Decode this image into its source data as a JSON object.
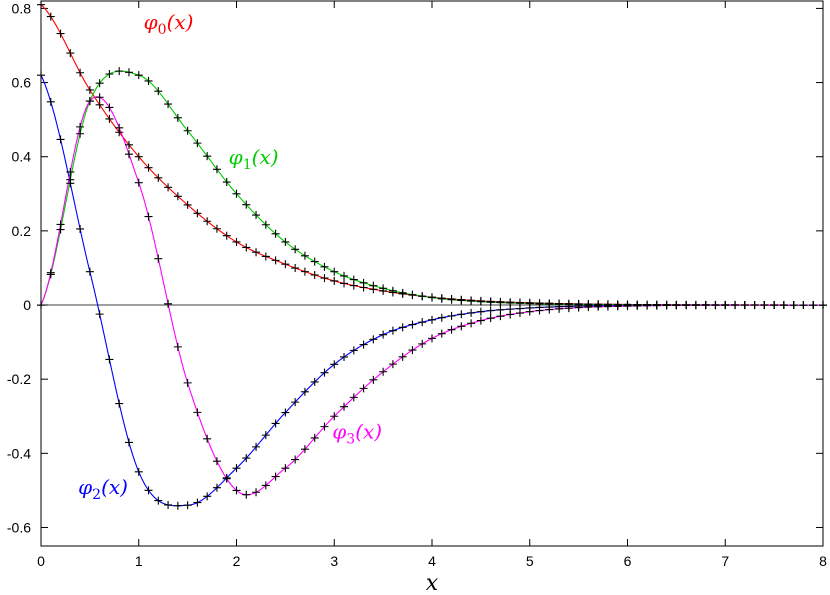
{
  "chart_data": {
    "type": "line",
    "title": "",
    "xlabel": "x",
    "ylabel": "",
    "xlim": [
      0,
      8
    ],
    "ylim": [
      -0.65,
      0.82
    ],
    "x_ticks": [
      0,
      1,
      2,
      3,
      4,
      5,
      6,
      7,
      8
    ],
    "x_tick_labels": [
      "0",
      "1",
      "2",
      "3",
      "4",
      "5",
      "6",
      "7",
      "8"
    ],
    "y_ticks": [
      0.8,
      0.6,
      0.4,
      0.2,
      0,
      -0.2,
      -0.4,
      -0.6
    ],
    "y_tick_labels": [
      "0.8",
      "0.6",
      "0.4",
      "0.2",
      "0",
      "-0.2",
      "-0.4",
      "-0.6"
    ],
    "grid": false,
    "zero_line": true,
    "x": [
      0,
      0.5,
      1.0,
      1.5,
      2.0,
      2.5,
      3.0,
      3.5,
      4.0,
      4.5,
      5.0,
      5.5,
      6.0,
      6.5,
      7.0,
      7.5,
      8.0
    ],
    "series": [
      {
        "name": "φ0",
        "label_main": "φ",
        "label_sub": "0",
        "label_arg": "(x)",
        "color": "#ff0000",
        "values": [
          0.81,
          0.58,
          0.4,
          0.27,
          0.17,
          0.11,
          0.065,
          0.038,
          0.021,
          0.011,
          0.006,
          0.003,
          0.0015,
          0.0007,
          0.0003,
          0.0001,
          0.0
        ]
      },
      {
        "name": "φ1",
        "label_main": "φ",
        "label_sub": "1",
        "label_arg": "(x)",
        "color": "#00cc00",
        "values": [
          0.0,
          0.55,
          0.62,
          0.47,
          0.3,
          0.17,
          0.09,
          0.045,
          0.02,
          0.009,
          0.004,
          0.0015,
          0.0006,
          0.0002,
          0.0001,
          0.0,
          0.0
        ]
      },
      {
        "name": "φ2",
        "label_main": "φ",
        "label_sub": "2",
        "label_arg": "(x)",
        "color": "#0000ff",
        "values": [
          0.62,
          0.09,
          -0.45,
          -0.54,
          -0.44,
          -0.29,
          -0.16,
          -0.08,
          -0.04,
          -0.018,
          -0.008,
          -0.003,
          -0.0012,
          -0.0005,
          -0.0002,
          -0.0001,
          0.0
        ]
      },
      {
        "name": "φ3",
        "label_main": "φ",
        "label_sub": "3",
        "label_arg": "(x)",
        "color": "#ff00ff",
        "values": [
          0.0,
          0.55,
          0.33,
          -0.21,
          -0.5,
          -0.44,
          -0.3,
          -0.18,
          -0.09,
          -0.042,
          -0.018,
          -0.007,
          -0.003,
          -0.001,
          -0.0004,
          -0.0001,
          0.0
        ]
      }
    ],
    "marker": "+",
    "marker_color": "#000000"
  }
}
